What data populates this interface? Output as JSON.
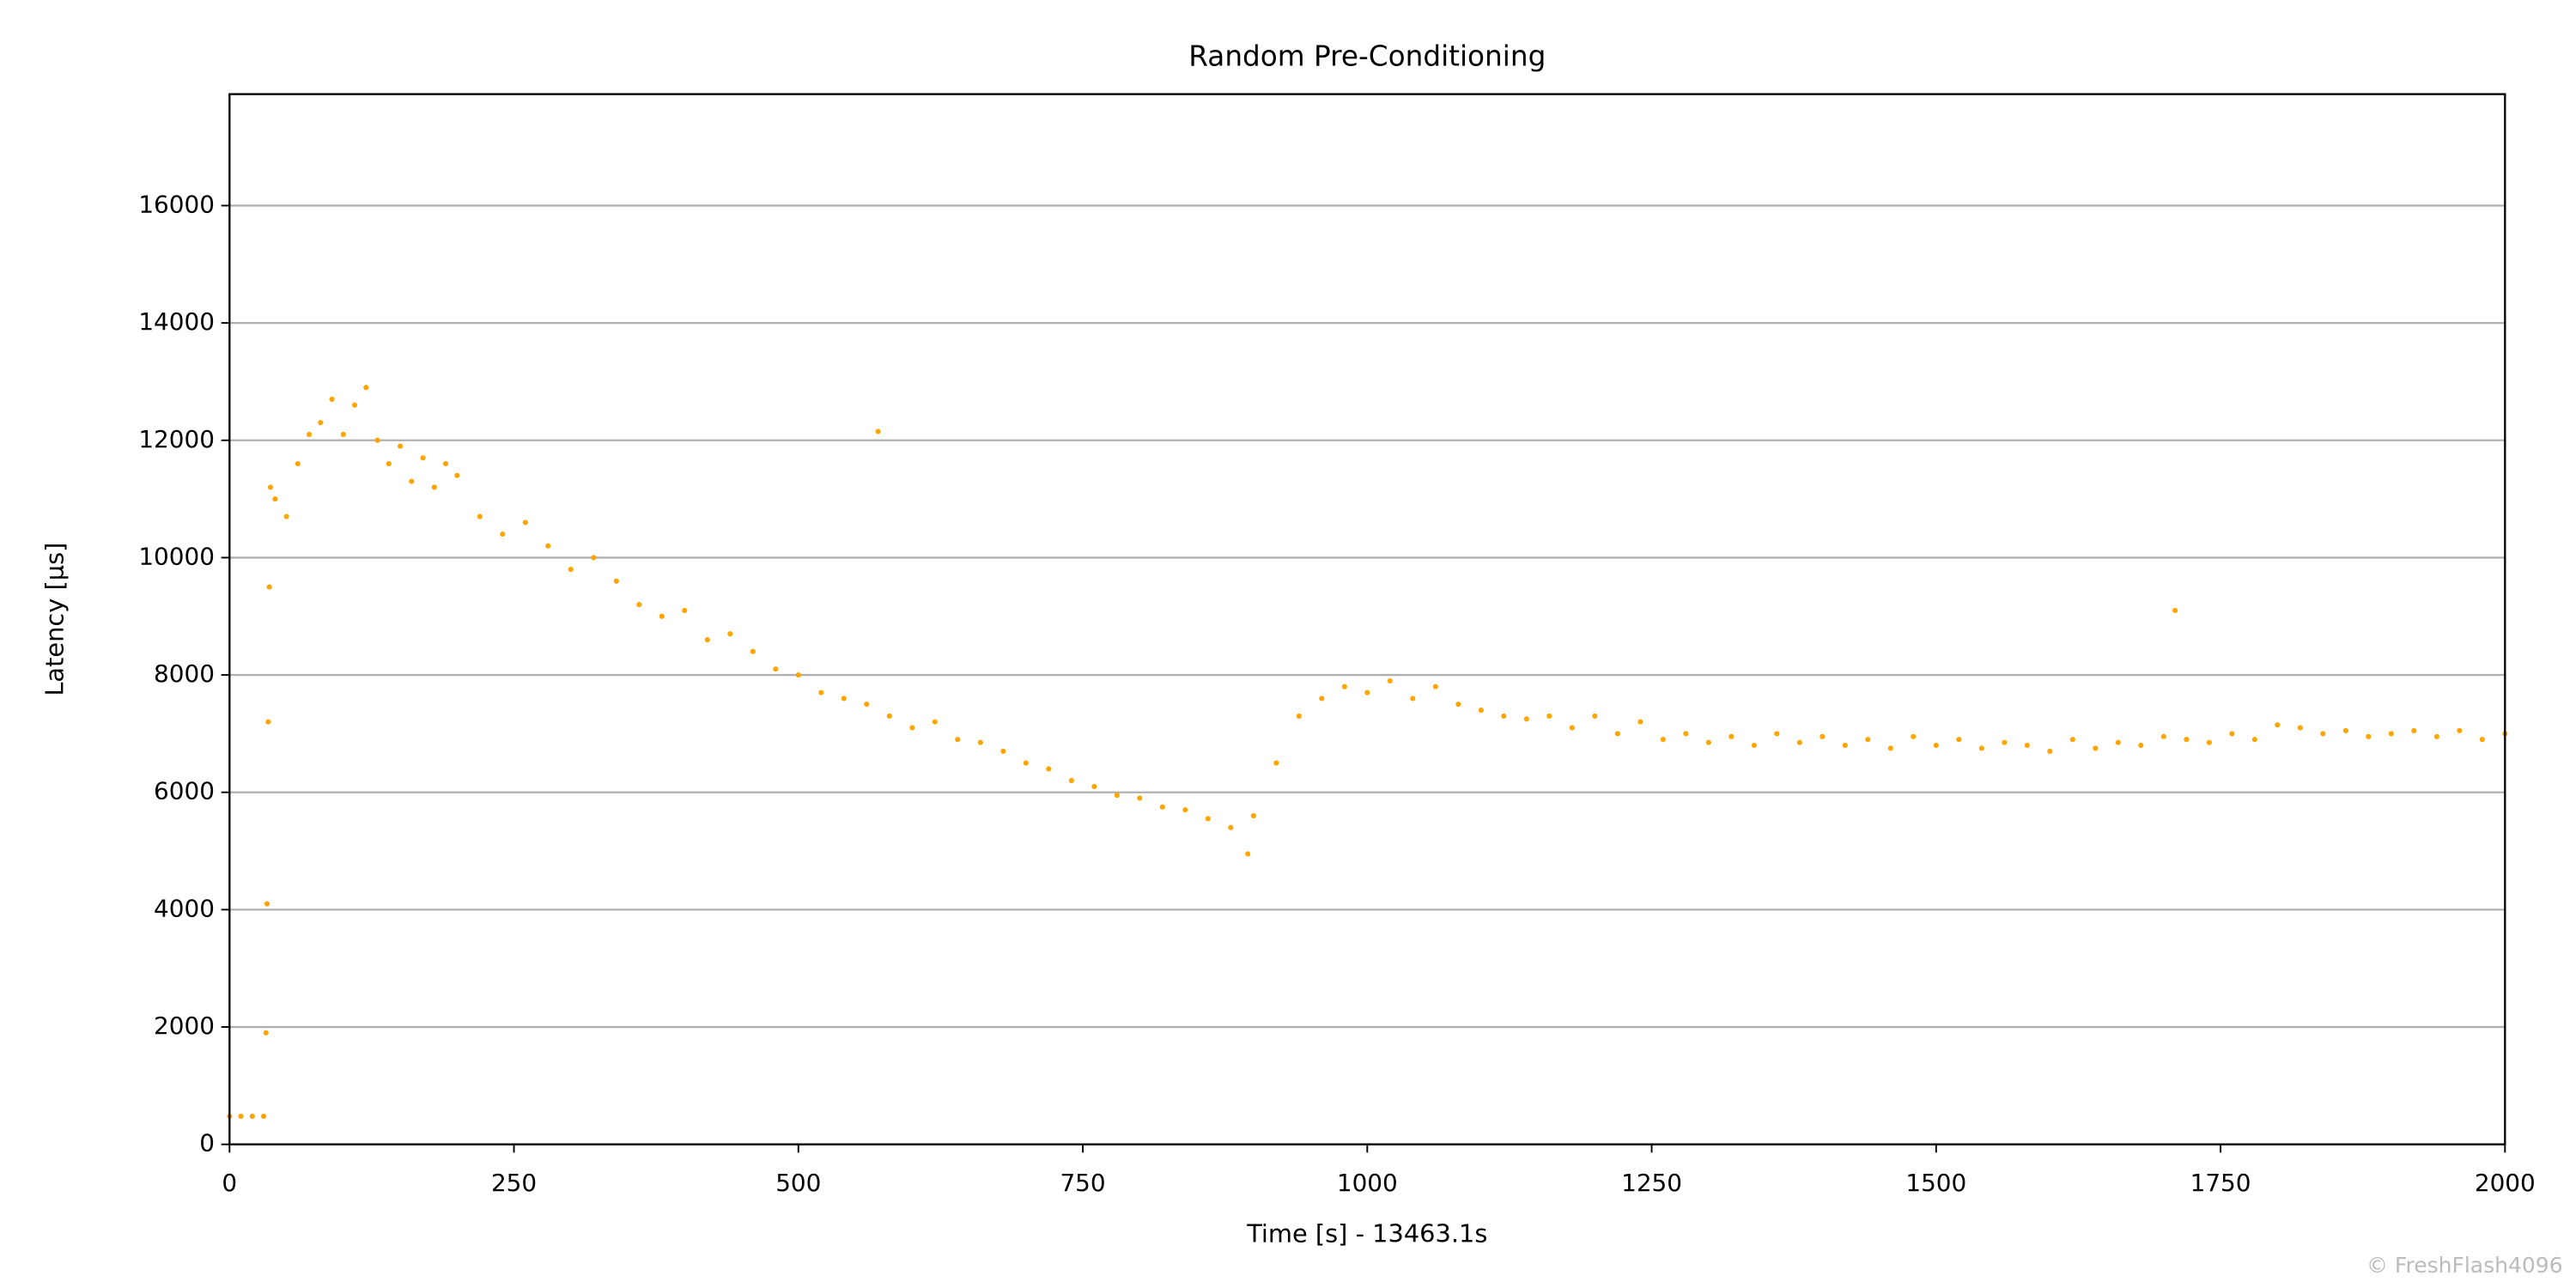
{
  "chart_data": {
    "type": "scatter",
    "title": "Random Pre-Conditioning",
    "x_label": "Time [s] - 13463.1s",
    "y_label": "Latency [µs]",
    "watermark": "© FreshFlash4096",
    "color": "#ffa500",
    "grid": "y",
    "xlim": [
      0,
      2000
    ],
    "xticks": [
      0,
      250,
      500,
      750,
      1000,
      1250,
      1500,
      1750,
      2000
    ],
    "ylim": [
      0,
      17900
    ],
    "yticks": [
      0,
      2000,
      4000,
      6000,
      8000,
      10000,
      12000,
      14000,
      16000
    ],
    "x": [
      0,
      10,
      20,
      30,
      32,
      33,
      34,
      35,
      36,
      40,
      50,
      60,
      70,
      80,
      90,
      100,
      110,
      120,
      130,
      140,
      150,
      160,
      170,
      180,
      190,
      200,
      220,
      240,
      260,
      280,
      300,
      320,
      340,
      360,
      380,
      400,
      420,
      440,
      460,
      480,
      500,
      520,
      540,
      560,
      580,
      600,
      620,
      640,
      660,
      680,
      700,
      720,
      740,
      760,
      780,
      800,
      820,
      840,
      860,
      880,
      900,
      920,
      940,
      960,
      980,
      1000,
      1020,
      1040,
      1060,
      1080,
      1100,
      1120,
      1140,
      1160,
      1180,
      1200,
      1220,
      1240,
      1260,
      1280,
      1300,
      1320,
      1340,
      1360,
      1380,
      1400,
      1420,
      1440,
      1460,
      1480,
      1500,
      1520,
      1540,
      1560,
      1580,
      1600,
      1620,
      1640,
      1660,
      1680,
      1700,
      1720,
      1740,
      1760,
      1780,
      1800,
      1820,
      1840,
      1860,
      1880,
      1900,
      1920,
      1940,
      1960,
      1980,
      2000,
      570,
      1710,
      895
    ],
    "values": [
      480,
      480,
      480,
      480,
      1900,
      4100,
      7200,
      9500,
      11200,
      11000,
      10700,
      11600,
      12100,
      12300,
      12700,
      12100,
      12600,
      12900,
      12000,
      11600,
      11900,
      11300,
      11700,
      11200,
      11600,
      11400,
      10700,
      10400,
      10600,
      10200,
      9800,
      10000,
      9600,
      9200,
      9000,
      9100,
      8600,
      8700,
      8400,
      8100,
      8000,
      7700,
      7600,
      7500,
      7300,
      7100,
      7200,
      6900,
      6850,
      6700,
      6500,
      6400,
      6200,
      6100,
      5950,
      5900,
      5750,
      5700,
      5550,
      5400,
      5600,
      6500,
      7300,
      7600,
      7800,
      7700,
      7900,
      7600,
      7800,
      7500,
      7400,
      7300,
      7250,
      7300,
      7100,
      7300,
      7000,
      7200,
      6900,
      7000,
      6850,
      6950,
      6800,
      7000,
      6850,
      6950,
      6800,
      6900,
      6750,
      6950,
      6800,
      6900,
      6750,
      6850,
      6800,
      6700,
      6900,
      6750,
      6850,
      6800,
      6950,
      6900,
      6850,
      7000,
      6900,
      7150,
      7100,
      7000,
      7050,
      6950,
      7000,
      7050,
      6950,
      7050,
      6900,
      7000,
      12150,
      9100,
      4950
    ]
  }
}
